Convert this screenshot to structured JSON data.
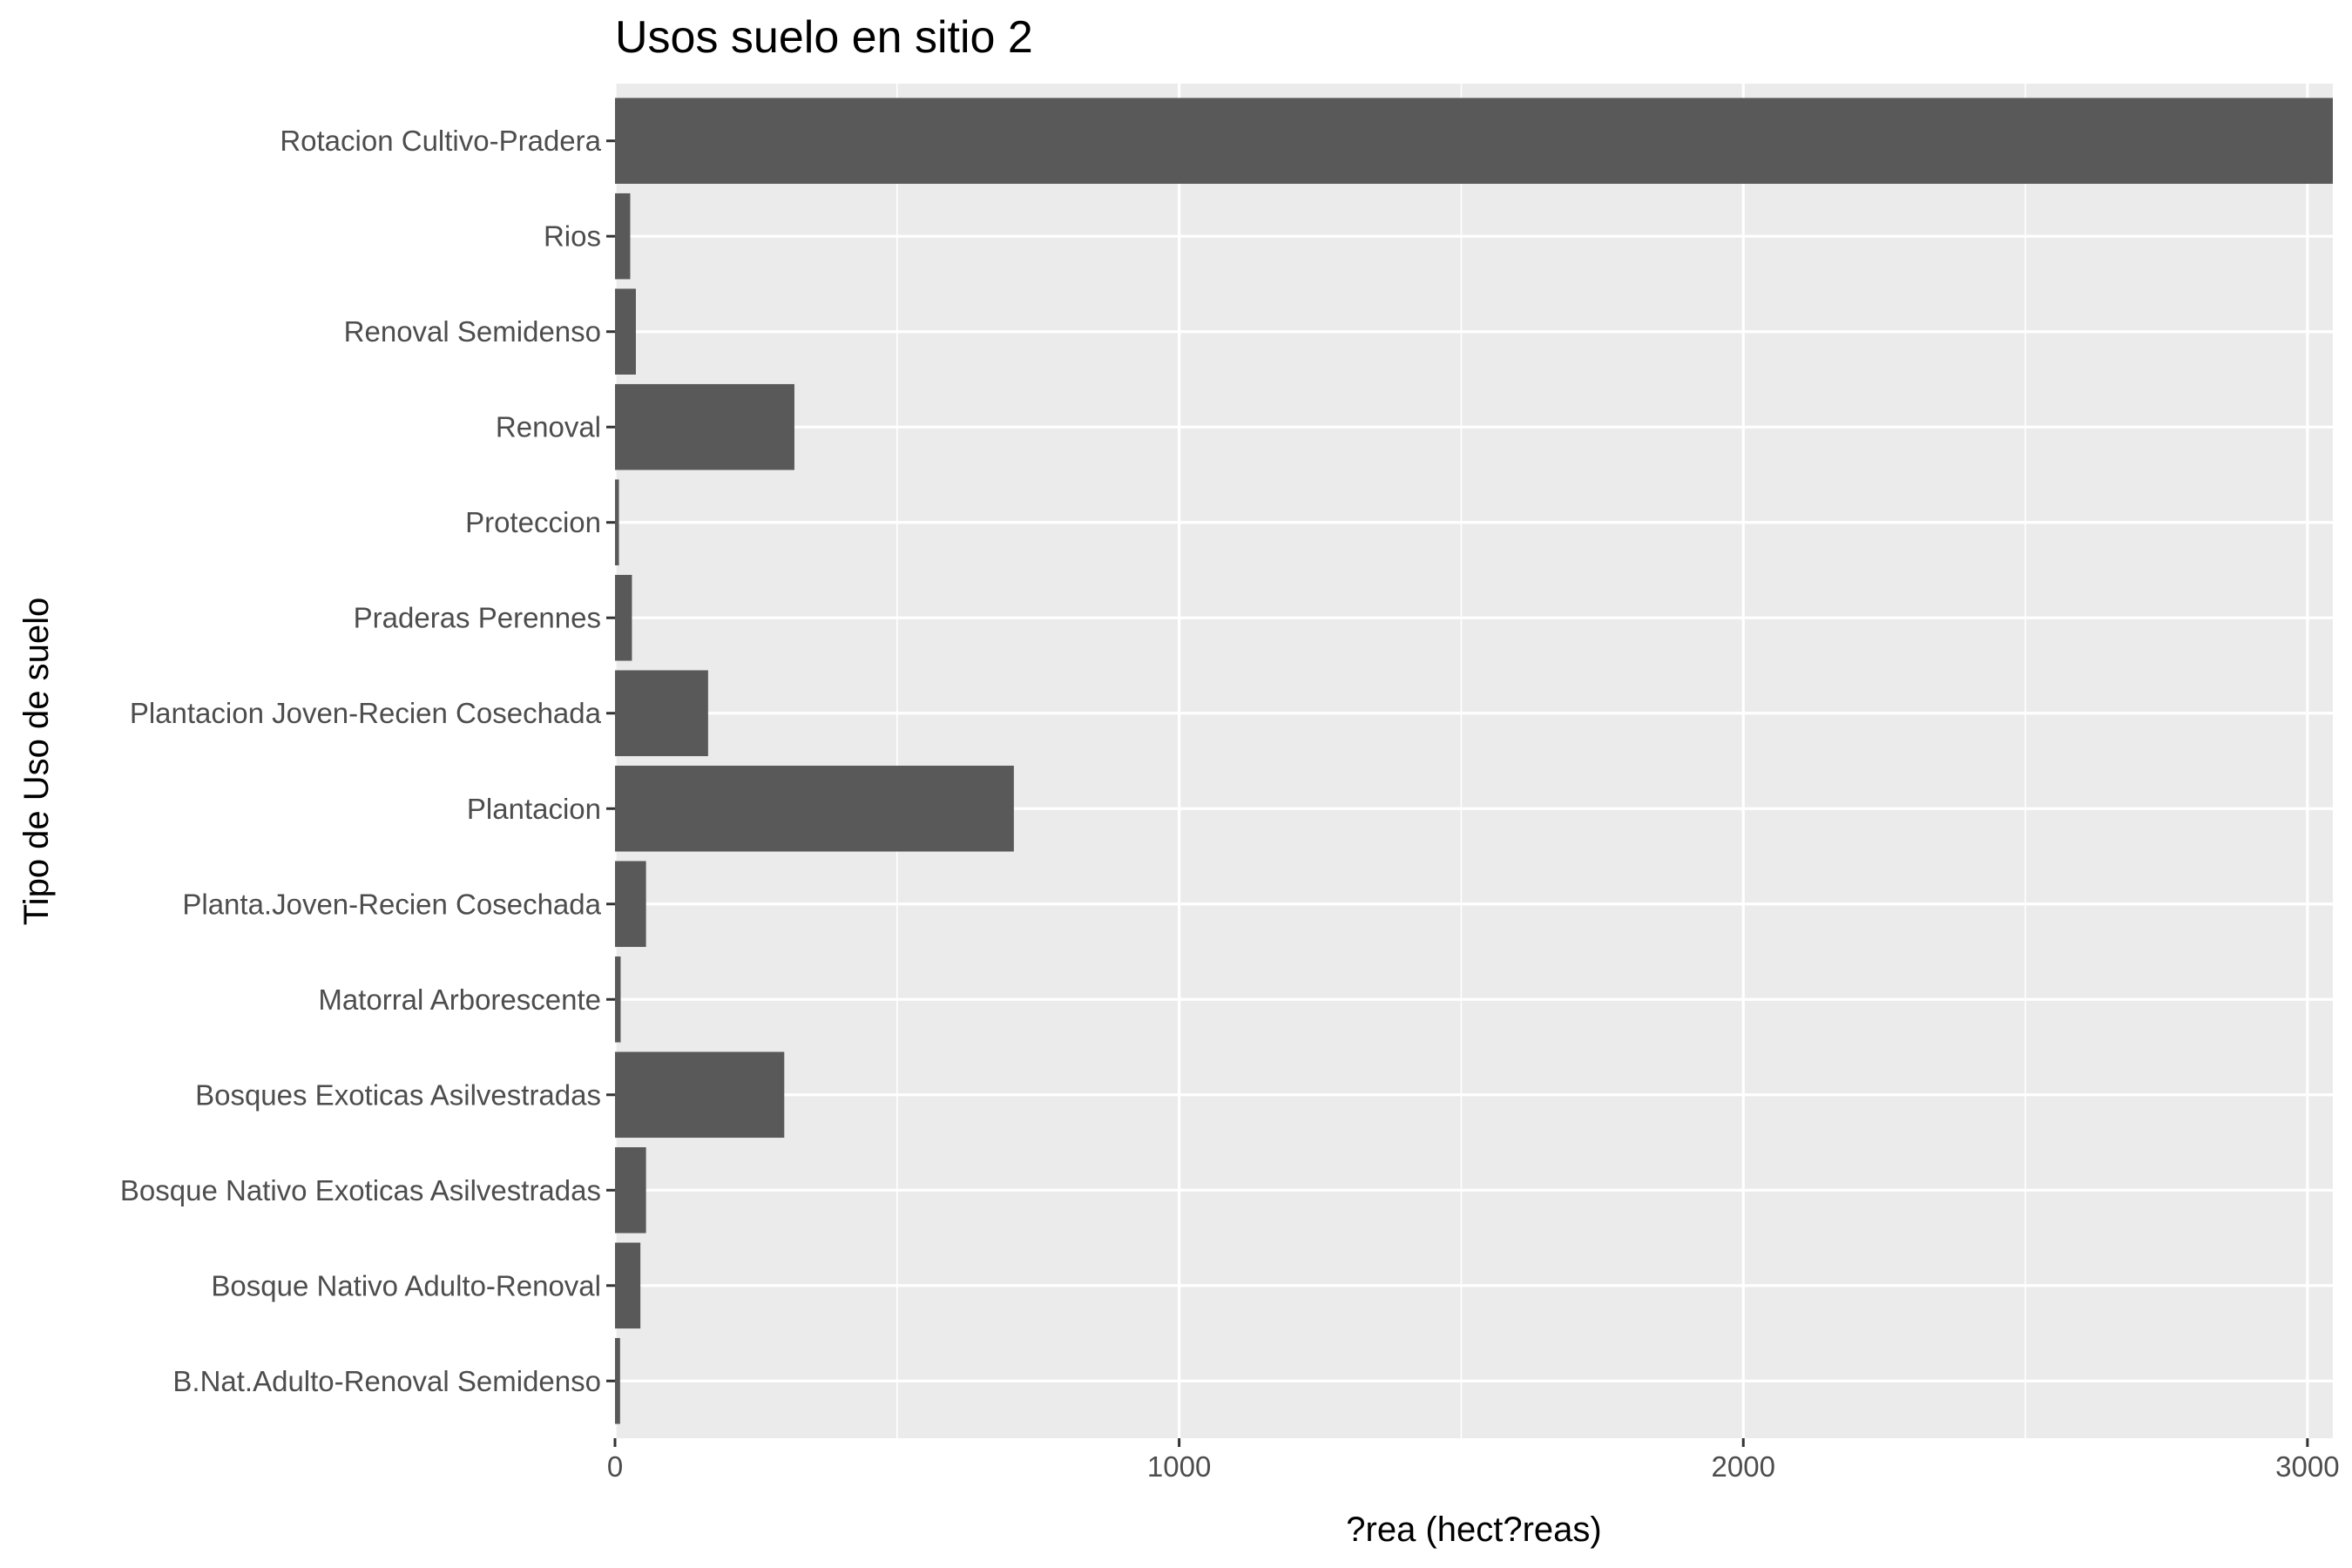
{
  "chart_data": {
    "type": "bar",
    "orientation": "horizontal",
    "title": "Usos suelo en sitio 2",
    "xlabel": "?rea (hect?reas)",
    "ylabel": "Tipo de Uso de suelo",
    "categories": [
      "B.Nat.Adulto-Renoval Semidenso",
      "Bosque Nativo Adulto-Renoval",
      "Bosque Nativo Exoticas Asilvestradas",
      "Bosques Exoticas Asilvestradas",
      "Matorral Arborescente",
      "Planta.Joven-Recien Cosechada",
      "Plantacion",
      "Plantacion Joven-Recien Cosechada",
      "Praderas Perennes",
      "Proteccion",
      "Renoval",
      "Renoval Semidenso",
      "Rios",
      "Rotacion Cultivo-Pradera"
    ],
    "values": [
      9,
      45,
      55,
      300,
      10,
      55,
      707,
      165,
      30,
      7,
      318,
      37,
      27,
      3045
    ],
    "xlim": [
      0,
      3045
    ],
    "xticks": [
      0,
      1000,
      2000,
      3000
    ],
    "xtick_labels": [
      "0",
      "1000",
      "2000",
      "3000"
    ],
    "grid": true,
    "legend": "none",
    "colors": {
      "bar": "#595959",
      "panel": "#ebebeb",
      "grid": "#ffffff"
    }
  }
}
